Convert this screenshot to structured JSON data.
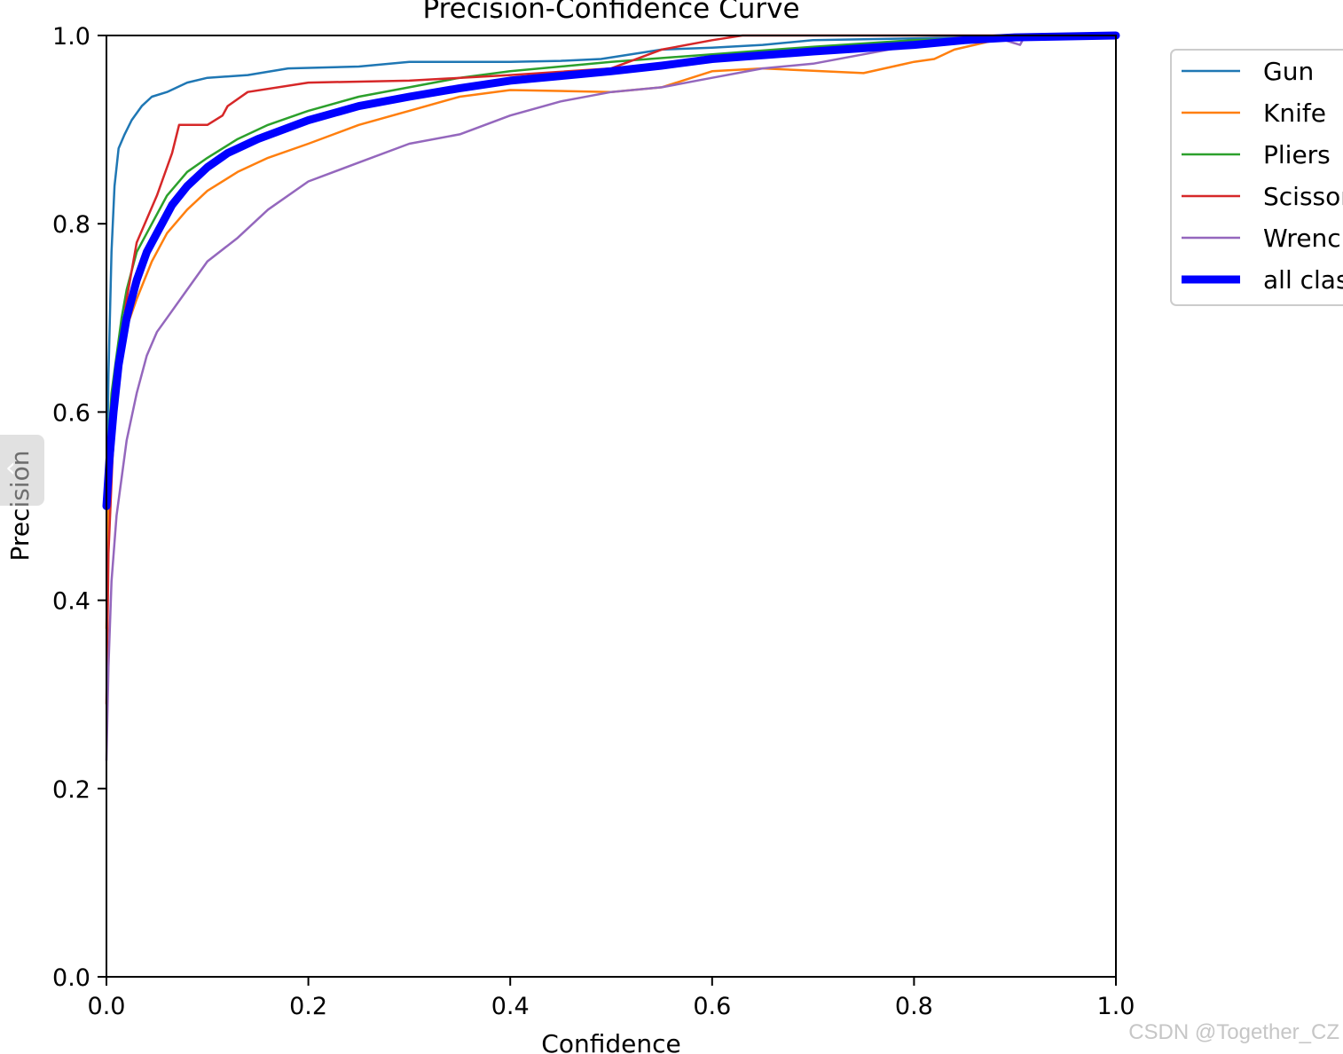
{
  "page": {
    "watermark": "CSDN @Together_CZ"
  },
  "colors": {
    "Gun": "#1f77b4",
    "Knife": "#ff7f0e",
    "Pliers": "#2ca02c",
    "Scissors": "#d62728",
    "Wrench": "#9467bd",
    "all_classes": "#0000ff"
  },
  "chart_data": {
    "type": "line",
    "title": "Precision-Confidence Curve",
    "xlabel": "Confidence",
    "ylabel": "Precision",
    "xlim": [
      0,
      1
    ],
    "ylim": [
      0,
      1
    ],
    "xticks": [
      "0.0",
      "0.2",
      "0.4",
      "0.6",
      "0.8",
      "1.0"
    ],
    "yticks": [
      "0.0",
      "0.2",
      "0.4",
      "0.6",
      "0.8",
      "1.0"
    ],
    "grid": false,
    "legend_position": "outside-right-top",
    "series": [
      {
        "name": "Gun",
        "color": "#1f77b4",
        "x": [
          0.0,
          0.002,
          0.005,
          0.008,
          0.012,
          0.018,
          0.025,
          0.035,
          0.045,
          0.06,
          0.08,
          0.1,
          0.14,
          0.18,
          0.25,
          0.3,
          0.4,
          0.45,
          0.49,
          0.55,
          0.6,
          0.65,
          0.7,
          0.8,
          0.85,
          0.9,
          1.0
        ],
        "y": [
          0.5,
          0.64,
          0.77,
          0.84,
          0.88,
          0.895,
          0.91,
          0.925,
          0.935,
          0.94,
          0.95,
          0.955,
          0.958,
          0.965,
          0.967,
          0.972,
          0.972,
          0.973,
          0.975,
          0.985,
          0.987,
          0.99,
          0.995,
          0.997,
          0.998,
          0.999,
          1.0
        ]
      },
      {
        "name": "Knife",
        "color": "#ff7f0e",
        "x": [
          0.0,
          0.002,
          0.006,
          0.012,
          0.02,
          0.03,
          0.045,
          0.06,
          0.08,
          0.1,
          0.13,
          0.16,
          0.2,
          0.25,
          0.3,
          0.35,
          0.4,
          0.5,
          0.55,
          0.6,
          0.65,
          0.75,
          0.8,
          0.82,
          0.84,
          0.86,
          0.88,
          1.0
        ],
        "y": [
          0.37,
          0.5,
          0.58,
          0.64,
          0.69,
          0.72,
          0.76,
          0.79,
          0.815,
          0.835,
          0.855,
          0.87,
          0.885,
          0.905,
          0.92,
          0.935,
          0.942,
          0.94,
          0.945,
          0.962,
          0.965,
          0.96,
          0.972,
          0.975,
          0.985,
          0.99,
          0.995,
          1.0
        ]
      },
      {
        "name": "Pliers",
        "color": "#2ca02c",
        "x": [
          0.0,
          0.002,
          0.005,
          0.01,
          0.015,
          0.02,
          0.03,
          0.04,
          0.06,
          0.08,
          0.1,
          0.13,
          0.16,
          0.2,
          0.25,
          0.3,
          0.35,
          0.4,
          0.5,
          0.6,
          0.7,
          0.8,
          0.9,
          1.0
        ],
        "y": [
          0.5,
          0.57,
          0.62,
          0.66,
          0.7,
          0.73,
          0.77,
          0.79,
          0.83,
          0.855,
          0.87,
          0.89,
          0.905,
          0.92,
          0.935,
          0.945,
          0.955,
          0.962,
          0.972,
          0.98,
          0.988,
          0.995,
          0.998,
          1.0
        ]
      },
      {
        "name": "Scissors",
        "color": "#d62728",
        "x": [
          0.0,
          0.002,
          0.006,
          0.01,
          0.015,
          0.02,
          0.03,
          0.04,
          0.05,
          0.06,
          0.065,
          0.072,
          0.08,
          0.1,
          0.115,
          0.12,
          0.14,
          0.2,
          0.3,
          0.4,
          0.5,
          0.55,
          0.6,
          0.63,
          1.0
        ],
        "y": [
          0.29,
          0.45,
          0.55,
          0.62,
          0.68,
          0.72,
          0.78,
          0.805,
          0.83,
          0.86,
          0.875,
          0.905,
          0.905,
          0.905,
          0.915,
          0.925,
          0.94,
          0.95,
          0.952,
          0.958,
          0.965,
          0.985,
          0.995,
          1.0,
          1.0
        ]
      },
      {
        "name": "Wrench",
        "color": "#9467bd",
        "x": [
          0.0,
          0.002,
          0.005,
          0.01,
          0.015,
          0.02,
          0.03,
          0.04,
          0.05,
          0.06,
          0.08,
          0.1,
          0.13,
          0.16,
          0.2,
          0.25,
          0.3,
          0.35,
          0.4,
          0.45,
          0.5,
          0.55,
          0.6,
          0.65,
          0.7,
          0.8,
          0.85,
          0.89,
          0.905,
          0.91,
          1.0
        ],
        "y": [
          0.23,
          0.33,
          0.42,
          0.49,
          0.53,
          0.57,
          0.62,
          0.66,
          0.685,
          0.7,
          0.73,
          0.76,
          0.785,
          0.815,
          0.845,
          0.865,
          0.885,
          0.895,
          0.915,
          0.93,
          0.94,
          0.945,
          0.955,
          0.965,
          0.97,
          0.99,
          0.995,
          0.995,
          0.99,
          1.0,
          1.0
        ]
      },
      {
        "name": "all classes",
        "color": "#0000ff",
        "x": [
          0.0,
          0.003,
          0.007,
          0.012,
          0.02,
          0.03,
          0.04,
          0.05,
          0.065,
          0.08,
          0.1,
          0.12,
          0.15,
          0.2,
          0.25,
          0.3,
          0.35,
          0.4,
          0.45,
          0.5,
          0.55,
          0.6,
          0.7,
          0.8,
          0.85,
          0.9,
          1.0
        ],
        "y": [
          0.5,
          0.55,
          0.6,
          0.65,
          0.7,
          0.74,
          0.77,
          0.79,
          0.82,
          0.84,
          0.86,
          0.875,
          0.89,
          0.91,
          0.925,
          0.935,
          0.944,
          0.952,
          0.957,
          0.962,
          0.968,
          0.975,
          0.983,
          0.99,
          0.995,
          0.998,
          1.0
        ]
      }
    ],
    "legend": [
      {
        "label": "Gun",
        "color": "#1f77b4"
      },
      {
        "label": "Knife",
        "color": "#ff7f0e"
      },
      {
        "label": "Pliers",
        "color": "#2ca02c"
      },
      {
        "label": "Scissors",
        "color": "#d62728"
      },
      {
        "label": "Wrench",
        "color": "#9467bd"
      },
      {
        "label": "all classes",
        "color": "#0000ff"
      }
    ]
  }
}
